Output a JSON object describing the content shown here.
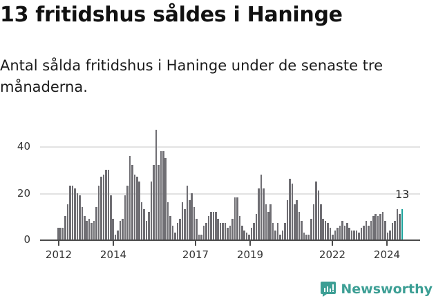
{
  "title": "13 fritidshus såldes i Haninge",
  "subtitle": "Antal sålda fritidshus i Haninge under de senaste tre månaderna.",
  "brand": {
    "name": "Newsworthy",
    "color": "#3d9f95"
  },
  "colors": {
    "bar": "#6f6e73",
    "highlight": "#1ba39c",
    "grid": "#e2e2e2"
  },
  "chart_data": {
    "type": "bar",
    "title": "13 fritidshus såldes i Haninge",
    "subtitle": "Antal sålda fritidshus i Haninge under de senaste tre månaderna.",
    "xlabel": "",
    "ylabel": "",
    "ylim": [
      0,
      47
    ],
    "yticks": [
      0,
      20,
      40
    ],
    "xticks": [
      "2012",
      "2014",
      "2017",
      "2019",
      "2022",
      "2024"
    ],
    "grid": true,
    "frequency": "monthly (rolling 3-month sum)",
    "start": "2012-01",
    "annotation": {
      "label": "13",
      "value": 13,
      "position": "last bar"
    },
    "values": [
      5,
      5,
      5,
      10,
      15,
      23,
      23,
      22,
      20,
      19,
      14,
      10,
      8,
      9,
      7,
      8,
      14,
      23,
      27,
      28,
      30,
      30,
      19,
      9,
      2,
      4,
      8,
      9,
      19,
      23,
      36,
      32,
      28,
      27,
      25,
      16,
      13,
      8,
      12,
      25,
      32,
      47,
      32,
      38,
      38,
      35,
      16,
      10,
      6,
      3,
      7,
      9,
      16,
      13,
      23,
      17,
      20,
      14,
      9,
      2,
      2,
      6,
      7,
      10,
      12,
      12,
      12,
      9,
      7,
      7,
      7,
      5,
      6,
      9,
      18,
      18,
      10,
      6,
      4,
      3,
      2,
      5,
      7,
      11,
      22,
      28,
      22,
      15,
      12,
      15,
      7,
      4,
      7,
      2,
      4,
      7,
      17,
      26,
      24,
      15,
      17,
      12,
      8,
      3,
      2,
      2,
      9,
      15,
      25,
      21,
      15,
      9,
      8,
      7,
      5,
      2,
      4,
      5,
      6,
      8,
      6,
      7,
      5,
      4,
      4,
      4,
      3,
      5,
      6,
      8,
      6,
      8,
      10,
      11,
      10,
      11,
      12,
      8,
      3,
      4,
      7,
      8,
      13,
      11,
      13
    ]
  },
  "y_axis_labels": [
    "40",
    "20",
    "0"
  ],
  "x_axis_labels": [
    "2012",
    "2014",
    "2017",
    "2019",
    "2022",
    "2024"
  ],
  "last_value_label": "13"
}
